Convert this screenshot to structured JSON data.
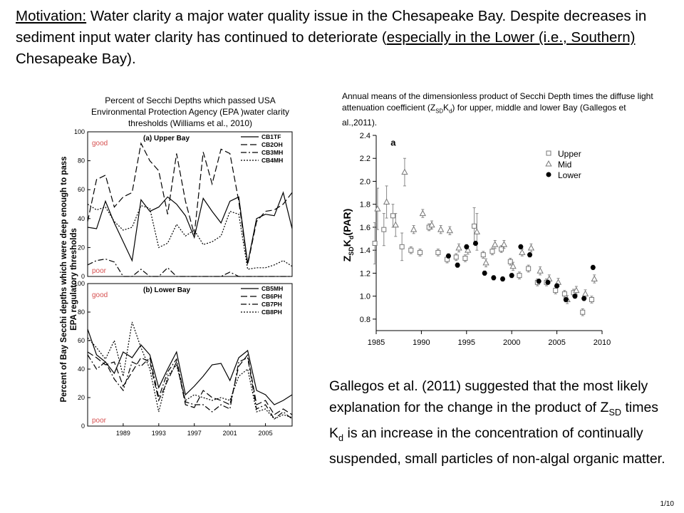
{
  "motivation": {
    "label": "Motivation:",
    "text1": " Water clarity a major water quality issue in the Chesapeake Bay.  Despite decreases in sediment input water clarity  has continued to deteriorate (",
    "emph": "especially in the Lower (i.e., Southern) ",
    "text2": "Chesapeake Bay)."
  },
  "left_caption": "Percent of Secchi Depths which passed USA Environmental Protection Agency (EPA )water clarity thresholds (Williams et al., 2010)",
  "right_caption": {
    "pre": " Annual means of the dimensionless product of Secchi Depth times the diffuse light attenuation coefficient (Z",
    "sub1": "SD",
    "mid": "K",
    "sub2": "d",
    "post": ") for upper, middle and lower Bay (Gallegos et al.,2011)."
  },
  "gallegos": {
    "t1": "Gallegos et al. (2011) suggested that the most likely explanation for the change in the product of Z",
    "sub1": "SD",
    "t2": " times K",
    "sub2": "d",
    "t3": " is an increase in the concentration of continually suspended, small particles of non-algal organic matter."
  },
  "page_number": "1/10",
  "colors": {
    "upper": "#808080",
    "mid": "#808080",
    "lower": "#000000",
    "annotation": "#d65050"
  },
  "chart_data": [
    {
      "type": "line",
      "title": "(a) Upper Bay",
      "ylabel": "Percent of Bay Secchi depths which were deep enough to pass EPA regulatory thresholds",
      "ylim": [
        0,
        100
      ],
      "yticks": [
        0,
        20,
        40,
        60,
        80,
        100
      ],
      "xlim": [
        1985,
        2008
      ],
      "annotations": [
        "good",
        "poor"
      ],
      "x": [
        1985,
        1986,
        1987,
        1988,
        1989,
        1990,
        1991,
        1992,
        1993,
        1994,
        1995,
        1996,
        1997,
        1998,
        1999,
        2000,
        2001,
        2002,
        2003,
        2004,
        2005,
        2006,
        2007,
        2008
      ],
      "series": [
        {
          "name": "CB1TF",
          "style": "solid",
          "values": [
            34,
            33,
            52,
            37,
            24,
            11,
            53,
            45,
            48,
            55,
            50,
            42,
            27,
            54,
            45,
            37,
            52,
            55,
            9,
            40,
            43,
            42,
            58,
            33
          ]
        },
        {
          "name": "CB2OH",
          "style": "dash",
          "values": [
            38,
            67,
            70,
            48,
            55,
            58,
            92,
            80,
            73,
            43,
            85,
            52,
            29,
            86,
            64,
            88,
            85,
            52,
            8,
            38,
            45,
            46,
            50,
            58
          ]
        },
        {
          "name": "CB3MH",
          "style": "dashdot",
          "values": [
            8,
            11,
            12,
            10,
            0,
            0,
            5,
            0,
            0,
            6,
            0,
            0,
            0,
            0,
            0,
            0,
            3,
            0,
            0,
            0,
            0,
            0,
            0,
            0
          ]
        },
        {
          "name": "CB4MH",
          "style": "dot",
          "values": [
            50,
            46,
            48,
            38,
            32,
            34,
            49,
            47,
            20,
            23,
            36,
            28,
            32,
            22,
            24,
            28,
            45,
            43,
            5,
            6,
            6,
            8,
            11,
            7
          ]
        }
      ]
    },
    {
      "type": "line",
      "title": "(b) Lower Bay",
      "ylim": [
        0,
        100
      ],
      "yticks": [
        0,
        20,
        40,
        60,
        80,
        100
      ],
      "xlim": [
        1985,
        2008
      ],
      "xticks": [
        1989,
        1993,
        1997,
        2001,
        2005
      ],
      "annotations": [
        "good",
        "poor"
      ],
      "x": [
        1985,
        1986,
        1987,
        1988,
        1989,
        1990,
        1991,
        1992,
        1993,
        1994,
        1995,
        1996,
        1997,
        1998,
        1999,
        2000,
        2001,
        2002,
        2003,
        2004,
        2005,
        2006,
        2007,
        2008
      ],
      "series": [
        {
          "name": "CB5MH",
          "style": "solid",
          "values": [
            68,
            50,
            45,
            37,
            52,
            48,
            57,
            50,
            27,
            40,
            52,
            22,
            28,
            35,
            43,
            44,
            32,
            48,
            53,
            25,
            22,
            15,
            18,
            22
          ]
        },
        {
          "name": "CB6PH",
          "style": "dash",
          "values": [
            52,
            48,
            43,
            45,
            28,
            38,
            48,
            45,
            18,
            32,
            45,
            15,
            13,
            25,
            20,
            18,
            15,
            42,
            50,
            15,
            18,
            8,
            12,
            8
          ]
        },
        {
          "name": "CB7PH",
          "style": "dashdot",
          "values": [
            50,
            40,
            45,
            33,
            25,
            45,
            42,
            48,
            20,
            38,
            47,
            17,
            15,
            15,
            10,
            15,
            12,
            45,
            48,
            12,
            15,
            5,
            10,
            5
          ]
        },
        {
          "name": "CB8PH",
          "style": "dot",
          "values": [
            62,
            55,
            47,
            60,
            35,
            73,
            55,
            40,
            10,
            35,
            43,
            18,
            22,
            20,
            18,
            20,
            18,
            35,
            40,
            10,
            12,
            5,
            8,
            6
          ]
        }
      ]
    },
    {
      "type": "scatter",
      "title": "a",
      "ylabel": "Z_SD K_d(PAR)",
      "ylabel_parts": {
        "z": "Z",
        "sub1": "SD",
        "k": "K",
        "sub2": "d",
        "post": "(PAR)"
      },
      "ylim": [
        0.7,
        2.4
      ],
      "yticks": [
        "0.8",
        "1.0",
        "1.2",
        "1.4",
        "1.6",
        "1.8",
        "2.0",
        "2.2",
        "2.4"
      ],
      "xlim": [
        1985,
        2010
      ],
      "xticks": [
        1985,
        1990,
        1995,
        2000,
        2005,
        2010
      ],
      "legend_position": "top-right",
      "series": [
        {
          "name": "Upper",
          "marker": "square",
          "points": [
            [
              1985,
              1.46
            ],
            [
              1986,
              1.58
            ],
            [
              1987,
              1.7
            ],
            [
              1988,
              1.43
            ],
            [
              1989,
              1.4
            ],
            [
              1990,
              1.38
            ],
            [
              1991,
              1.6
            ],
            [
              1992,
              1.38
            ],
            [
              1993,
              1.32
            ],
            [
              1994,
              1.34
            ],
            [
              1995,
              1.33
            ],
            [
              1996,
              1.61
            ],
            [
              1997,
              1.36
            ],
            [
              1998,
              1.39
            ],
            [
              1999,
              1.41
            ],
            [
              2000,
              1.3
            ],
            [
              2001,
              1.18
            ],
            [
              2002,
              1.24
            ],
            [
              2003,
              1.12
            ],
            [
              2004,
              1.12
            ],
            [
              2005,
              1.05
            ],
            [
              2006,
              1.02
            ],
            [
              2007,
              1.03
            ],
            [
              2008,
              0.86
            ],
            [
              2009,
              0.97
            ]
          ]
        },
        {
          "name": "Mid",
          "marker": "triangle",
          "points": [
            [
              1985,
              1.76
            ],
            [
              1986,
              1.82
            ],
            [
              1987,
              1.62
            ],
            [
              1988,
              2.08
            ],
            [
              1989,
              1.58
            ],
            [
              1990,
              1.72
            ],
            [
              1991,
              1.62
            ],
            [
              1992,
              1.58
            ],
            [
              1993,
              1.57
            ],
            [
              1994,
              1.42
            ],
            [
              1995,
              1.4
            ],
            [
              1996,
              1.56
            ],
            [
              1997,
              1.29
            ],
            [
              1998,
              1.45
            ],
            [
              1999,
              1.45
            ],
            [
              2000,
              1.26
            ],
            [
              2001,
              1.38
            ],
            [
              2002,
              1.42
            ],
            [
              2003,
              1.22
            ],
            [
              2004,
              1.15
            ],
            [
              2005,
              1.12
            ],
            [
              2006,
              0.97
            ],
            [
              2007,
              1.05
            ],
            [
              2008,
              1.02
            ],
            [
              2009,
              1.15
            ]
          ]
        },
        {
          "name": "Lower",
          "marker": "circle",
          "points": [
            [
              1993,
              1.35
            ],
            [
              1994,
              1.27
            ],
            [
              1995,
              1.43
            ],
            [
              1996,
              1.46
            ],
            [
              1997,
              1.2
            ],
            [
              1998,
              1.16
            ],
            [
              1999,
              1.15
            ],
            [
              2000,
              1.18
            ],
            [
              2001,
              1.43
            ],
            [
              2002,
              1.36
            ],
            [
              2003,
              1.13
            ],
            [
              2004,
              1.12
            ],
            [
              2005,
              1.09
            ],
            [
              2006,
              0.97
            ],
            [
              2007,
              1.0
            ],
            [
              2008,
              0.98
            ],
            [
              2009,
              1.25
            ]
          ]
        }
      ]
    }
  ]
}
